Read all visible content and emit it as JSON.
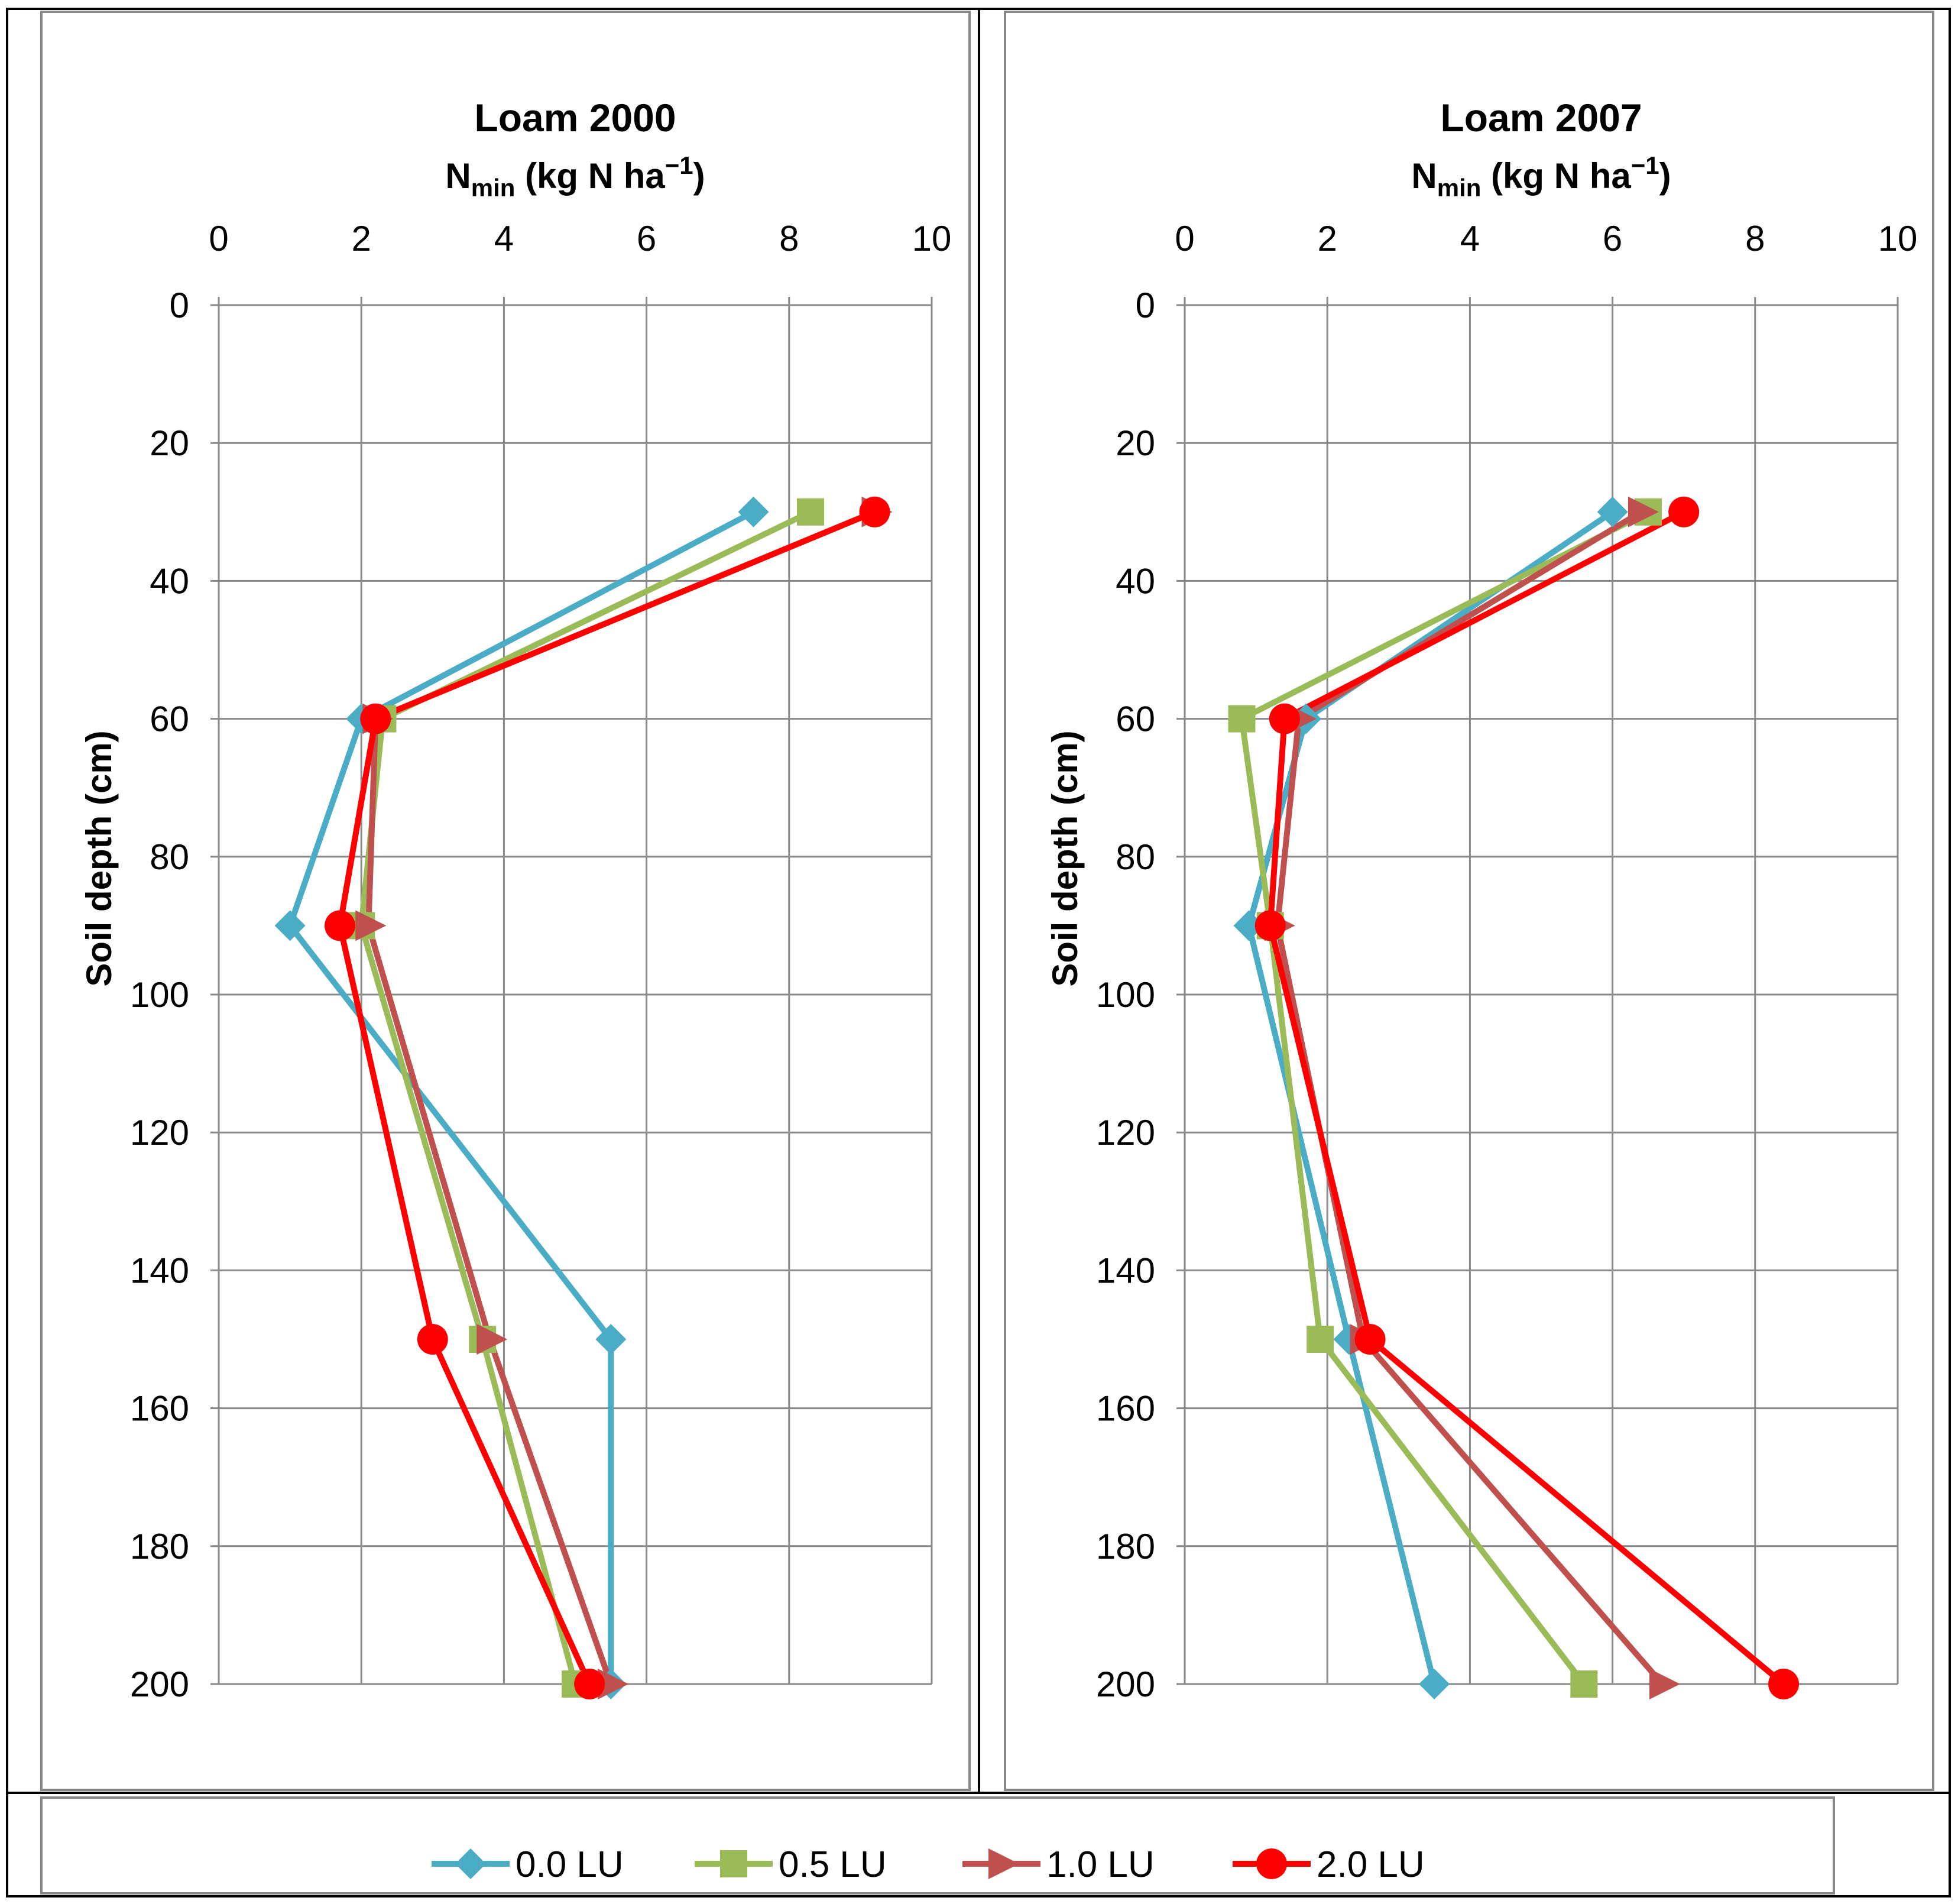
{
  "chart_data": [
    {
      "type": "line",
      "title": "Loam 2000",
      "xlabel_main": "N",
      "xlabel_sub": "min",
      "xlabel_unit": " (kg N ha",
      "xlabel_sup": "−1",
      "xlabel_close": ")",
      "ylabel": "Soil depth (cm)",
      "xlim": [
        0,
        10
      ],
      "ylim": [
        0,
        200
      ],
      "x_ticks": [
        "0",
        "2",
        "4",
        "6",
        "8",
        "10"
      ],
      "y_ticks": [
        "0",
        "20",
        "40",
        "60",
        "80",
        "100",
        "120",
        "140",
        "160",
        "180",
        "200"
      ],
      "depths": [
        30,
        60,
        90,
        150,
        200
      ],
      "series": [
        {
          "name": "0.0 LU",
          "values": [
            7.5,
            2.0,
            1.0,
            5.5,
            5.5
          ]
        },
        {
          "name": "0.5 LU",
          "values": [
            8.3,
            2.3,
            2.0,
            3.7,
            5.0
          ]
        },
        {
          "name": "1.0 LU",
          "values": [
            9.2,
            2.2,
            2.1,
            3.8,
            5.5
          ]
        },
        {
          "name": "2.0 LU",
          "values": [
            9.2,
            2.2,
            1.7,
            3.0,
            5.2
          ]
        }
      ]
    },
    {
      "type": "line",
      "title": "Loam 2007",
      "xlabel_main": "N",
      "xlabel_sub": "min",
      "xlabel_unit": " (kg N ha",
      "xlabel_sup": "−1",
      "xlabel_close": ")",
      "ylabel": "Soil depth (cm)",
      "xlim": [
        0,
        10
      ],
      "ylim": [
        0,
        200
      ],
      "x_ticks": [
        "0",
        "2",
        "4",
        "6",
        "8",
        "10"
      ],
      "y_ticks": [
        "0",
        "20",
        "40",
        "60",
        "80",
        "100",
        "120",
        "140",
        "160",
        "180",
        "200"
      ],
      "depths": [
        30,
        60,
        90,
        150,
        200
      ],
      "series": [
        {
          "name": "0.0 LU",
          "values": [
            6.0,
            1.7,
            0.9,
            2.3,
            3.5
          ]
        },
        {
          "name": "0.5 LU",
          "values": [
            6.5,
            0.8,
            1.2,
            1.9,
            5.6
          ]
        },
        {
          "name": "1.0 LU",
          "values": [
            6.4,
            1.6,
            1.3,
            2.5,
            6.7
          ]
        },
        {
          "name": "2.0 LU",
          "values": [
            7.0,
            1.4,
            1.2,
            2.6,
            8.4
          ]
        }
      ]
    }
  ],
  "legend": [
    {
      "name": "0.0 LU",
      "color": "#4BACC6",
      "marker": "diamond"
    },
    {
      "name": "0.5 LU",
      "color": "#9BBB59",
      "marker": "square"
    },
    {
      "name": "1.0 LU",
      "color": "#C0504D",
      "marker": "triangle"
    },
    {
      "name": "2.0 LU",
      "color": "#FF0000",
      "marker": "circle"
    }
  ]
}
